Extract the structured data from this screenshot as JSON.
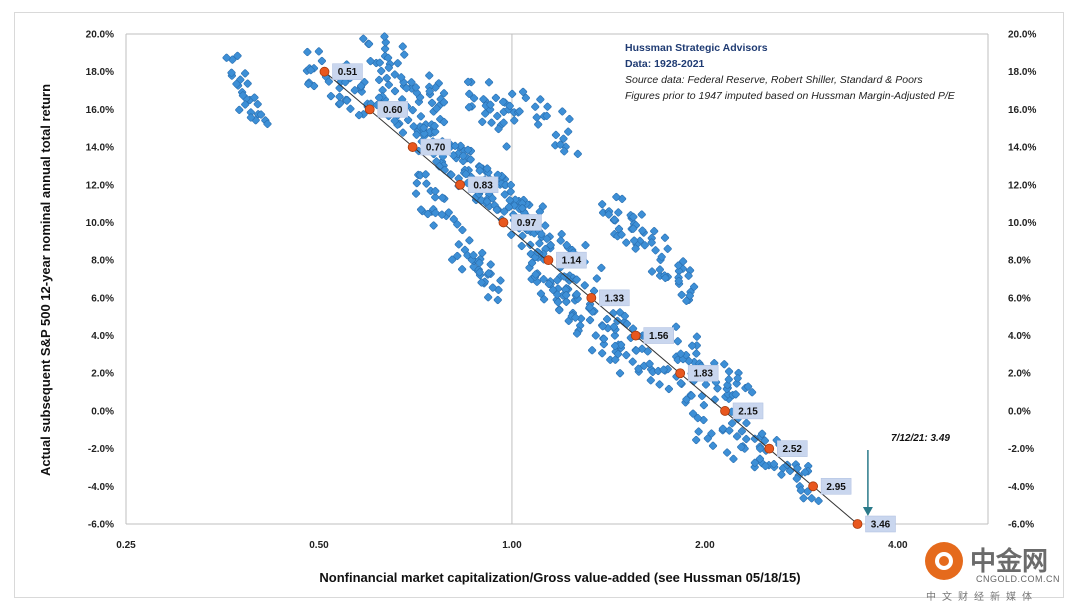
{
  "chart_data": {
    "type": "scatter",
    "title": "",
    "xlabel": "Nonfinancial market capitalization/Gross value-added (see Hussman 05/18/15)",
    "ylabel": "Actual subsequent S&P 500 12-year nominal annual total return",
    "x_scale": "log",
    "xlim": [
      0.25,
      5.0
    ],
    "ylim": [
      -6.0,
      20.0
    ],
    "x_ticks": [
      "0.25",
      "0.50",
      "1.00",
      "2.00",
      "4.00"
    ],
    "x_tick_values": [
      0.25,
      0.5,
      1.0,
      2.0,
      4.0
    ],
    "y_ticks": [
      "-6.0%",
      "-4.0%",
      "-2.0%",
      "0.0%",
      "2.0%",
      "4.0%",
      "6.0%",
      "8.0%",
      "10.0%",
      "12.0%",
      "14.0%",
      "16.0%",
      "18.0%",
      "20.0%"
    ],
    "y_tick_values": [
      -6,
      -4,
      -2,
      0,
      2,
      4,
      6,
      8,
      10,
      12,
      14,
      16,
      18,
      20
    ],
    "grid": "major gridlines at x=1.00 and y=20.0%",
    "annotation_lines": [
      "Hussman Strategic Advisors",
      "Data: 1928-2021",
      "Source data: Federal Reserve, Robert Shiller, Standard & Poors",
      "Figures prior to 1947  imputed based on Hussman Margin-Adjusted P/E"
    ],
    "fit_points": {
      "name": "",
      "color": "#e8571e",
      "points": [
        {
          "x": 0.51,
          "y": 18.0,
          "label": "0.51"
        },
        {
          "x": 0.6,
          "y": 16.0,
          "label": "0.60"
        },
        {
          "x": 0.7,
          "y": 14.0,
          "label": "0.70"
        },
        {
          "x": 0.83,
          "y": 12.0,
          "label": "0.83"
        },
        {
          "x": 0.97,
          "y": 10.0,
          "label": "0.97"
        },
        {
          "x": 1.14,
          "y": 8.0,
          "label": "1.14"
        },
        {
          "x": 1.33,
          "y": 6.0,
          "label": "1.33"
        },
        {
          "x": 1.56,
          "y": 4.0,
          "label": "1.56"
        },
        {
          "x": 1.83,
          "y": 2.0,
          "label": "1.83"
        },
        {
          "x": 2.15,
          "y": 0.0,
          "label": "2.15"
        },
        {
          "x": 2.52,
          "y": -2.0,
          "label": "2.52"
        },
        {
          "x": 2.95,
          "y": -4.0,
          "label": "2.95"
        },
        {
          "x": 3.46,
          "y": -6.0,
          "label": "3.46"
        }
      ]
    },
    "callout": {
      "text": "7/12/21: 3.49",
      "x": 3.49,
      "y": -6.0
    },
    "scatter_color": "#3d8fd6",
    "scatter_clusters": [
      {
        "x0": 0.36,
        "y0": 18.0,
        "x1": 0.42,
        "y1": 15.5,
        "n": 25
      },
      {
        "x0": 0.48,
        "y0": 18.5,
        "x1": 0.62,
        "y1": 16.0,
        "n": 40
      },
      {
        "x0": 0.6,
        "y0": 19.5,
        "x1": 0.8,
        "y1": 16.0,
        "n": 45
      },
      {
        "x0": 0.62,
        "y0": 17.0,
        "x1": 0.85,
        "y1": 13.0,
        "n": 55
      },
      {
        "x0": 0.85,
        "y0": 17.5,
        "x1": 1.0,
        "y1": 15.0,
        "n": 25
      },
      {
        "x0": 1.0,
        "y0": 16.5,
        "x1": 1.25,
        "y1": 14.5,
        "n": 25
      },
      {
        "x0": 0.72,
        "y0": 14.5,
        "x1": 0.95,
        "y1": 11.5,
        "n": 55
      },
      {
        "x0": 0.9,
        "y0": 12.5,
        "x1": 1.05,
        "y1": 10.0,
        "n": 35
      },
      {
        "x0": 0.72,
        "y0": 12.0,
        "x1": 0.95,
        "y1": 6.0,
        "n": 55
      },
      {
        "x0": 1.0,
        "y0": 11.0,
        "x1": 1.35,
        "y1": 7.0,
        "n": 60
      },
      {
        "x0": 1.05,
        "y0": 8.5,
        "x1": 1.45,
        "y1": 3.0,
        "n": 70
      },
      {
        "x0": 1.4,
        "y0": 11.0,
        "x1": 1.9,
        "y1": 6.5,
        "n": 60
      },
      {
        "x0": 1.4,
        "y0": 4.5,
        "x1": 1.9,
        "y1": 1.5,
        "n": 45
      },
      {
        "x0": 1.8,
        "y0": 3.5,
        "x1": 2.35,
        "y1": 0.5,
        "n": 40
      },
      {
        "x0": 1.9,
        "y0": 0.0,
        "x1": 2.5,
        "y1": -2.5,
        "n": 35
      },
      {
        "x0": 2.4,
        "y0": -2.0,
        "x1": 3.0,
        "y1": -4.0,
        "n": 30
      }
    ]
  },
  "watermark": {
    "logo_text": "中金网",
    "site": "CNGOLD.COM.CN",
    "tagline": "中文财经新媒体"
  }
}
